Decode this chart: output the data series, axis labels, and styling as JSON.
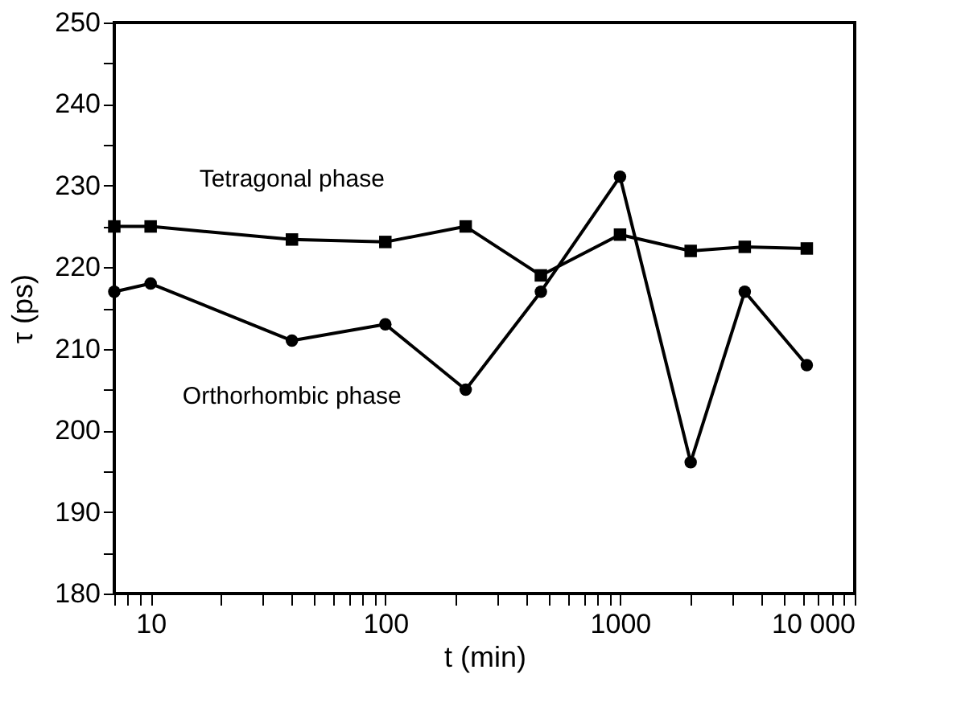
{
  "chart_data": {
    "type": "line",
    "xlabel": "t (min)",
    "ylabel": "τ (ps)",
    "log": "x",
    "grid": false,
    "line_style": "solid",
    "xlim": [
      7,
      10000
    ],
    "ylim": [
      180,
      250
    ],
    "xticks": [
      {
        "value": 7,
        "label": null
      },
      {
        "value": 8,
        "label": null
      },
      {
        "value": 9,
        "label": null
      },
      10,
      {
        "value": 20,
        "label": null
      },
      {
        "value": 30,
        "label": null
      },
      {
        "value": 40,
        "label": null
      },
      {
        "value": 50,
        "label": null
      },
      {
        "value": 60,
        "label": null
      },
      {
        "value": 70,
        "label": null
      },
      {
        "value": 80,
        "label": null
      },
      {
        "value": 90,
        "label": null
      },
      100,
      {
        "value": 200,
        "label": null
      },
      {
        "value": 300,
        "label": null
      },
      {
        "value": 400,
        "label": null
      },
      {
        "value": 500,
        "label": null
      },
      {
        "value": 600,
        "label": null
      },
      {
        "value": 700,
        "label": null
      },
      {
        "value": 800,
        "label": null
      },
      {
        "value": 900,
        "label": null
      },
      1000,
      {
        "value": 2000,
        "label": null
      },
      {
        "value": 3000,
        "label": null
      },
      {
        "value": 4000,
        "label": null
      },
      {
        "value": 5000,
        "label": null
      },
      {
        "value": 6000,
        "label": null
      },
      {
        "value": 7000,
        "label": null
      },
      {
        "value": 8000,
        "label": null
      },
      {
        "value": 9000,
        "label": null
      },
      {
        "value": 10000,
        "label": "10 000"
      }
    ],
    "yticks": [
      180,
      {
        "value": 185,
        "label": null
      },
      190,
      {
        "value": 195,
        "label": null
      },
      200,
      {
        "value": 205,
        "label": null
      },
      210,
      {
        "value": 215,
        "label": null
      },
      220,
      {
        "value": 225,
        "label": null
      },
      230,
      {
        "value": 235,
        "label": null
      },
      240,
      {
        "value": 245,
        "label": null
      },
      250
    ],
    "x": [
      7,
      10,
      40,
      100,
      220,
      460,
      1000,
      2000,
      3400,
      6250
    ],
    "series": [
      {
        "name": "Tetragonal phase",
        "color": "#000000",
        "marker": "square",
        "values": [
          225,
          225,
          223.4,
          223.1,
          225,
          219,
          224,
          222,
          222.5,
          222.3
        ]
      },
      {
        "name": "Orthorhombic phase",
        "color": "#000000",
        "marker": "circle",
        "values": [
          217,
          218,
          211,
          213,
          205,
          217,
          231.1,
          196.1,
          217,
          208
        ]
      }
    ]
  }
}
